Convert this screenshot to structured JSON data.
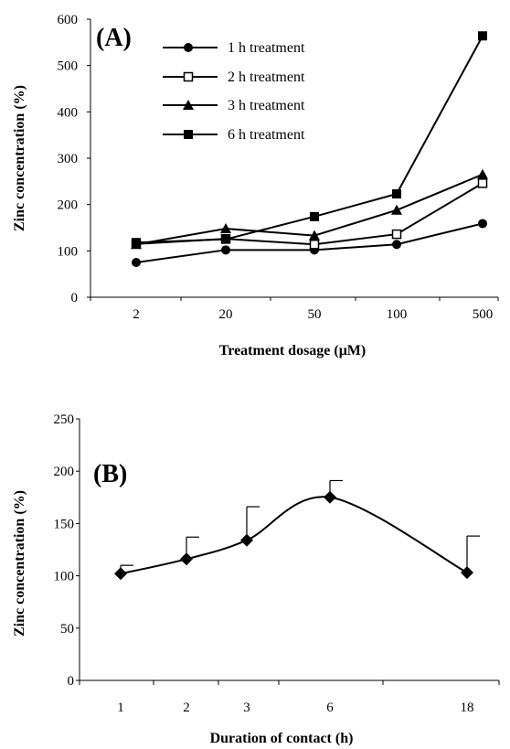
{
  "chart_data": [
    {
      "type": "line",
      "panel_label": "(A)",
      "categories": [
        "2",
        "20",
        "50",
        "100",
        "500"
      ],
      "xlabel": "Treatment dosage (μM)",
      "ylabel": "Zinc concentration (%)",
      "ylim": [
        0,
        600
      ],
      "yticks": [
        0,
        100,
        200,
        300,
        400,
        500,
        600
      ],
      "grid": false,
      "legend_position": "top-left",
      "series": [
        {
          "name": "1 h treatment",
          "marker": "circle",
          "values": [
            75,
            102,
            102,
            114,
            159
          ]
        },
        {
          "name": "2 h treatment",
          "marker": "open-square",
          "values": [
            115,
            126,
            114,
            136,
            246
          ]
        },
        {
          "name": "3 h treatment",
          "marker": "triangle",
          "values": [
            114,
            148,
            133,
            188,
            265
          ]
        },
        {
          "name": "6 h treatment",
          "marker": "filled-square",
          "values": [
            118,
            125,
            174,
            223,
            564
          ]
        }
      ]
    },
    {
      "type": "line",
      "panel_label": "(B)",
      "categories": [
        "1",
        "2",
        "3",
        "6",
        "18"
      ],
      "xlabel": "Duration of contact (h)",
      "ylabel": "Zinc concentration (%)",
      "ylim": [
        0,
        250
      ],
      "yticks": [
        0,
        50,
        100,
        150,
        200,
        250
      ],
      "grid": false,
      "smooth": true,
      "series": [
        {
          "marker": "diamond",
          "values": [
            102,
            116,
            134,
            175,
            103
          ],
          "error_upper": [
            8,
            21,
            32,
            16,
            35
          ]
        }
      ]
    }
  ]
}
